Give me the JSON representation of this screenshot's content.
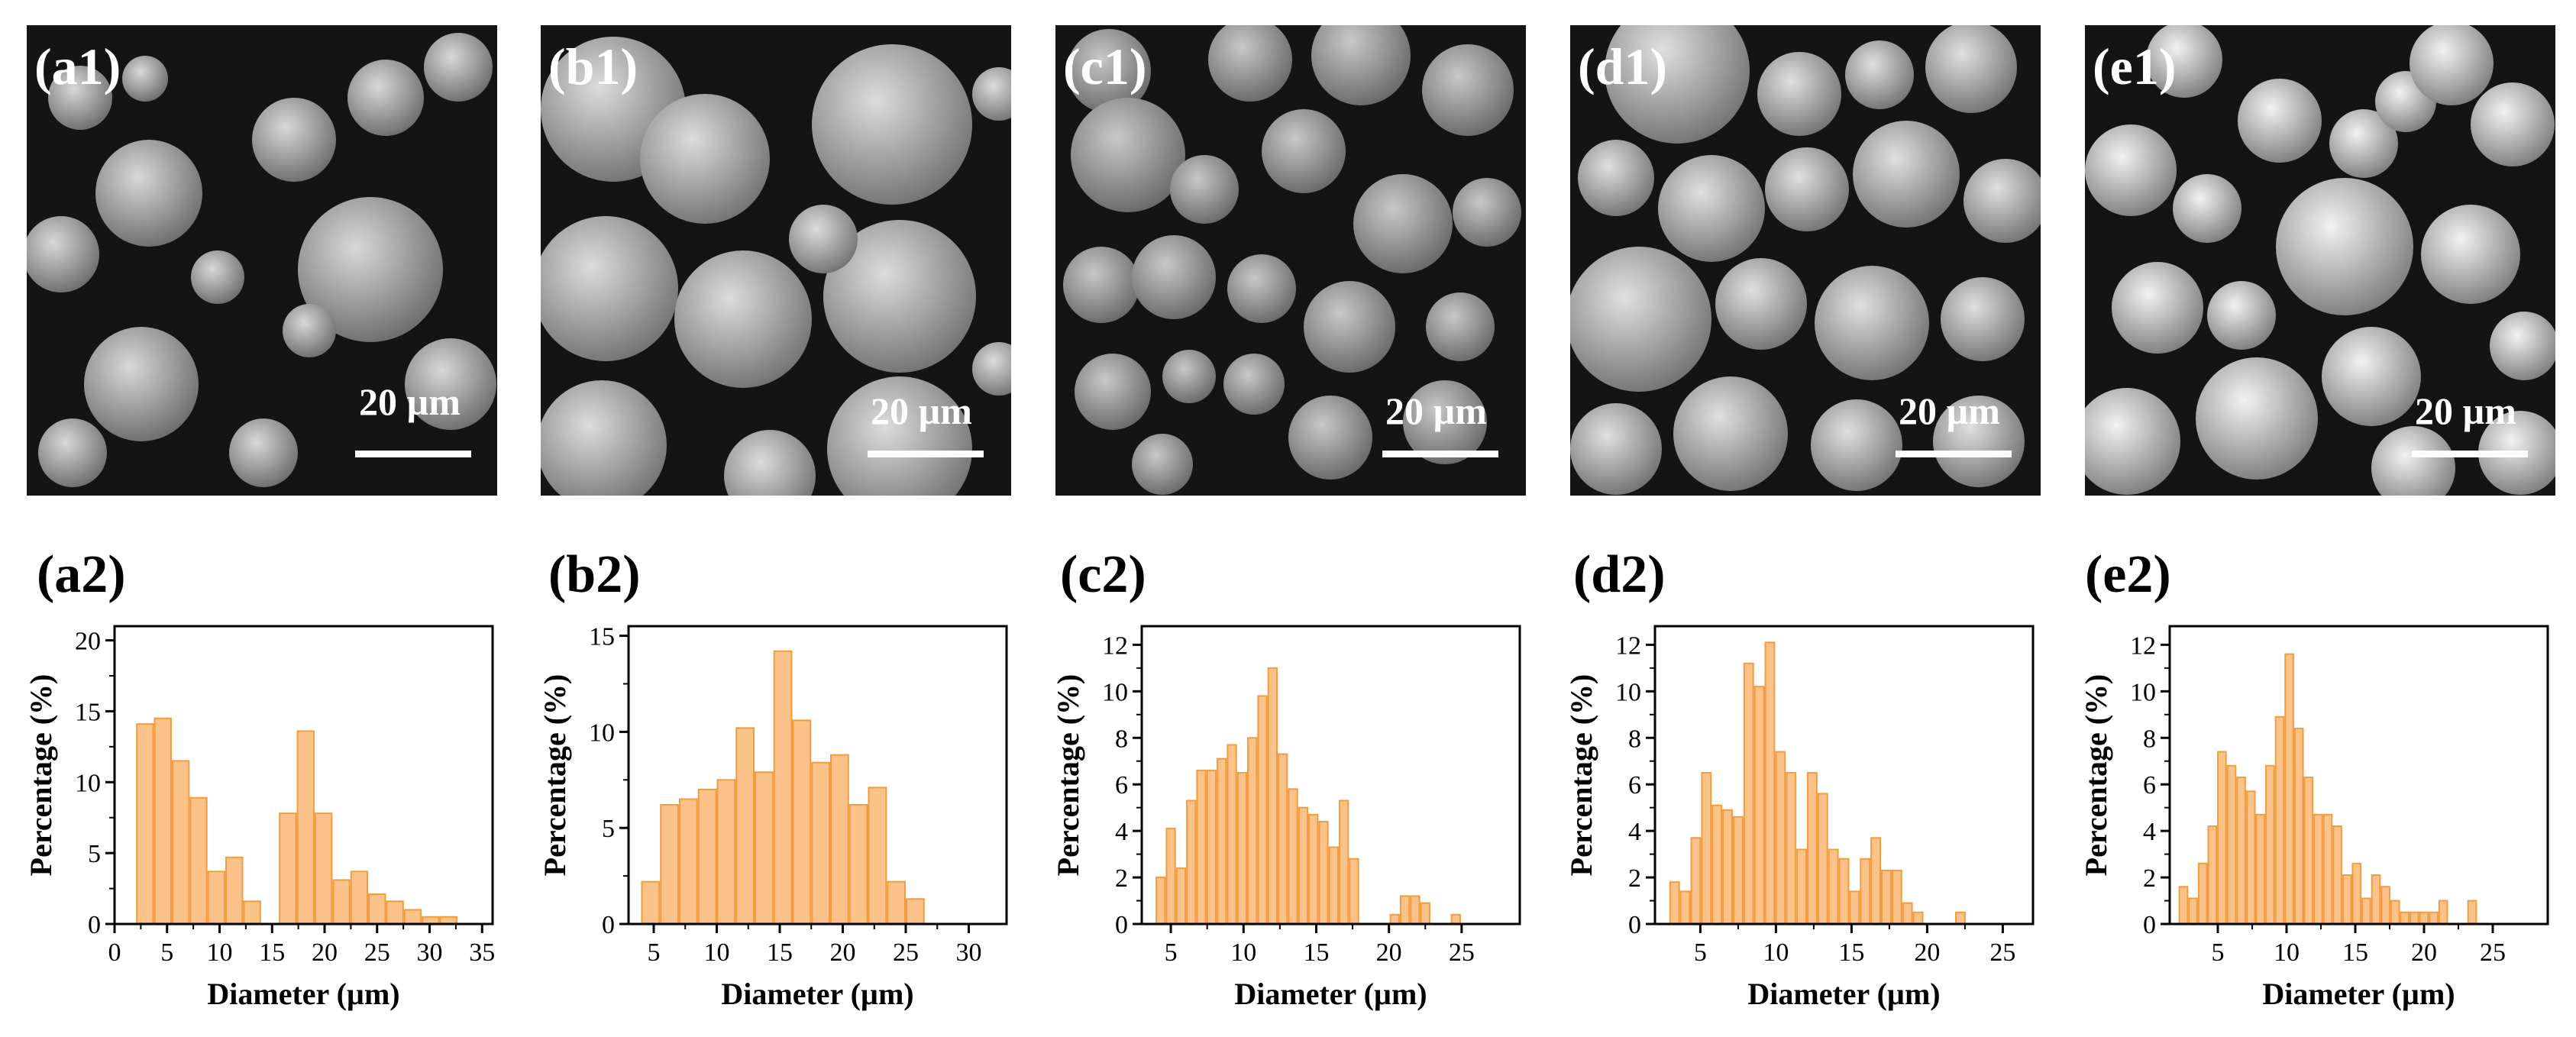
{
  "panels": [
    {
      "image_label": "(a1)",
      "scale_text": "20 µm",
      "chart_label": "(a2)",
      "chart_data": {
        "type": "bar",
        "xlabel": "Diameter (µm)",
        "ylabel": "Percentage (%)",
        "xlim": [
          0,
          36
        ],
        "ylim": [
          0,
          21
        ],
        "xticks": [
          0,
          5,
          10,
          15,
          20,
          25,
          30,
          35
        ],
        "yticks": [
          0,
          5,
          10,
          15,
          20
        ],
        "bin_width": 1.7,
        "x": [
          2.9,
          4.6,
          6.3,
          8.0,
          9.7,
          11.4,
          13.1,
          14.8,
          16.5,
          18.2,
          19.9,
          21.6,
          23.3,
          25.0,
          26.7,
          28.4,
          30.1,
          31.8,
          33.5
        ],
        "values": [
          14.1,
          14.5,
          11.5,
          8.9,
          3.7,
          4.7,
          1.6,
          0,
          7.8,
          13.6,
          7.8,
          3.1,
          3.7,
          2.1,
          1.6,
          1.0,
          0.5,
          0.5,
          0
        ]
      }
    },
    {
      "image_label": "(b1)",
      "scale_text": "20 µm",
      "chart_label": "(b2)",
      "chart_data": {
        "type": "bar",
        "xlabel": "Diameter (µm)",
        "ylabel": "Percentage (%)",
        "xlim": [
          3,
          33
        ],
        "ylim": [
          0,
          15.5
        ],
        "xticks": [
          5,
          10,
          15,
          20,
          25,
          30
        ],
        "yticks": [
          0,
          5,
          10,
          15
        ],
        "bin_width": 1.5,
        "x": [
          4.75,
          6.25,
          7.75,
          9.25,
          10.75,
          12.25,
          13.75,
          15.25,
          16.75,
          18.25,
          19.75,
          21.25,
          22.75,
          24.25,
          25.75,
          27.25,
          28.75,
          30.25
        ],
        "values": [
          2.2,
          6.2,
          6.5,
          7.0,
          7.5,
          10.2,
          7.9,
          14.2,
          10.6,
          8.4,
          8.8,
          6.2,
          7.1,
          2.2,
          1.3,
          0,
          0,
          0
        ]
      }
    },
    {
      "image_label": "(c1)",
      "scale_text": "20 µm",
      "chart_label": "(c2)",
      "chart_data": {
        "type": "bar",
        "xlabel": "Diameter (µm)",
        "ylabel": "Percentage (%)",
        "xlim": [
          3,
          29
        ],
        "ylim": [
          0,
          12.8
        ],
        "xticks": [
          5,
          10,
          15,
          20,
          25
        ],
        "yticks": [
          0,
          2,
          4,
          6,
          8,
          10,
          12
        ],
        "bin_width": 0.7,
        "x": [
          4.3,
          5.0,
          5.7,
          6.4,
          7.1,
          7.8,
          8.5,
          9.2,
          9.9,
          10.6,
          11.3,
          12.0,
          12.7,
          13.4,
          14.1,
          14.8,
          15.5,
          16.2,
          16.9,
          17.6,
          18.3,
          19.0,
          19.7,
          20.4,
          21.1,
          21.8,
          22.5,
          23.2,
          23.9,
          24.6,
          25.3,
          26.0,
          26.7,
          27.4
        ],
        "values": [
          2.0,
          4.1,
          2.4,
          5.3,
          6.6,
          6.6,
          7.1,
          7.7,
          6.5,
          8.0,
          9.8,
          11.0,
          7.3,
          5.8,
          5.0,
          4.7,
          4.4,
          3.3,
          5.3,
          2.8,
          0,
          0,
          0,
          0.4,
          1.2,
          1.2,
          0.9,
          0,
          0,
          0.4,
          0,
          0,
          0,
          0
        ]
      }
    },
    {
      "image_label": "(d1)",
      "scale_text": "20 µm",
      "chart_label": "(d2)",
      "chart_data": {
        "type": "bar",
        "xlabel": "Diameter (µm)",
        "ylabel": "Percentage (%)",
        "xlim": [
          2,
          27
        ],
        "ylim": [
          0,
          12.8
        ],
        "xticks": [
          5,
          10,
          15,
          20,
          25
        ],
        "yticks": [
          0,
          2,
          4,
          6,
          8,
          10,
          12
        ],
        "bin_width": 0.7,
        "x": [
          3.3,
          4.0,
          4.7,
          5.4,
          6.1,
          6.8,
          7.5,
          8.2,
          8.9,
          9.6,
          10.3,
          11.0,
          11.7,
          12.4,
          13.1,
          13.8,
          14.5,
          15.2,
          15.9,
          16.6,
          17.3,
          18.0,
          18.7,
          19.4,
          20.1,
          20.8,
          21.5,
          22.2,
          22.9,
          23.6,
          24.3,
          25.0,
          25.7
        ],
        "values": [
          1.8,
          1.4,
          3.7,
          6.5,
          5.1,
          4.9,
          4.6,
          11.2,
          10.2,
          12.1,
          7.4,
          6.5,
          3.2,
          6.5,
          5.6,
          3.2,
          2.8,
          1.4,
          2.8,
          3.7,
          2.3,
          2.3,
          0.9,
          0.5,
          0,
          0,
          0,
          0.5,
          0,
          0,
          0,
          0,
          0
        ]
      }
    },
    {
      "image_label": "(e1)",
      "scale_text": "20 µm",
      "chart_label": "(e2)",
      "chart_data": {
        "type": "bar",
        "xlabel": "Diameter (µm)",
        "ylabel": "Percentage (%)",
        "xlim": [
          1.5,
          29
        ],
        "ylim": [
          0,
          12.8
        ],
        "xticks": [
          5,
          10,
          15,
          20,
          25
        ],
        "yticks": [
          0,
          2,
          4,
          6,
          8,
          10,
          12
        ],
        "bin_width": 0.7,
        "x": [
          2.5,
          3.2,
          3.9,
          4.6,
          5.3,
          6.0,
          6.7,
          7.4,
          8.1,
          8.8,
          9.5,
          10.2,
          10.9,
          11.6,
          12.3,
          13.0,
          13.7,
          14.4,
          15.1,
          15.8,
          16.5,
          17.2,
          17.9,
          18.6,
          19.3,
          20.0,
          20.7,
          21.4,
          22.1,
          22.8,
          23.5,
          24.2,
          24.9,
          25.6,
          26.3,
          27.0,
          27.7
        ],
        "values": [
          1.6,
          1.1,
          2.6,
          4.2,
          7.4,
          6.8,
          6.3,
          5.7,
          4.7,
          6.8,
          8.9,
          11.6,
          8.4,
          6.3,
          4.7,
          4.7,
          4.2,
          2.1,
          2.6,
          1.1,
          2.1,
          1.6,
          1.0,
          0.5,
          0.5,
          0.5,
          0.5,
          1.0,
          0,
          0,
          1.0,
          0,
          0,
          0,
          0,
          0,
          0
        ]
      }
    }
  ]
}
